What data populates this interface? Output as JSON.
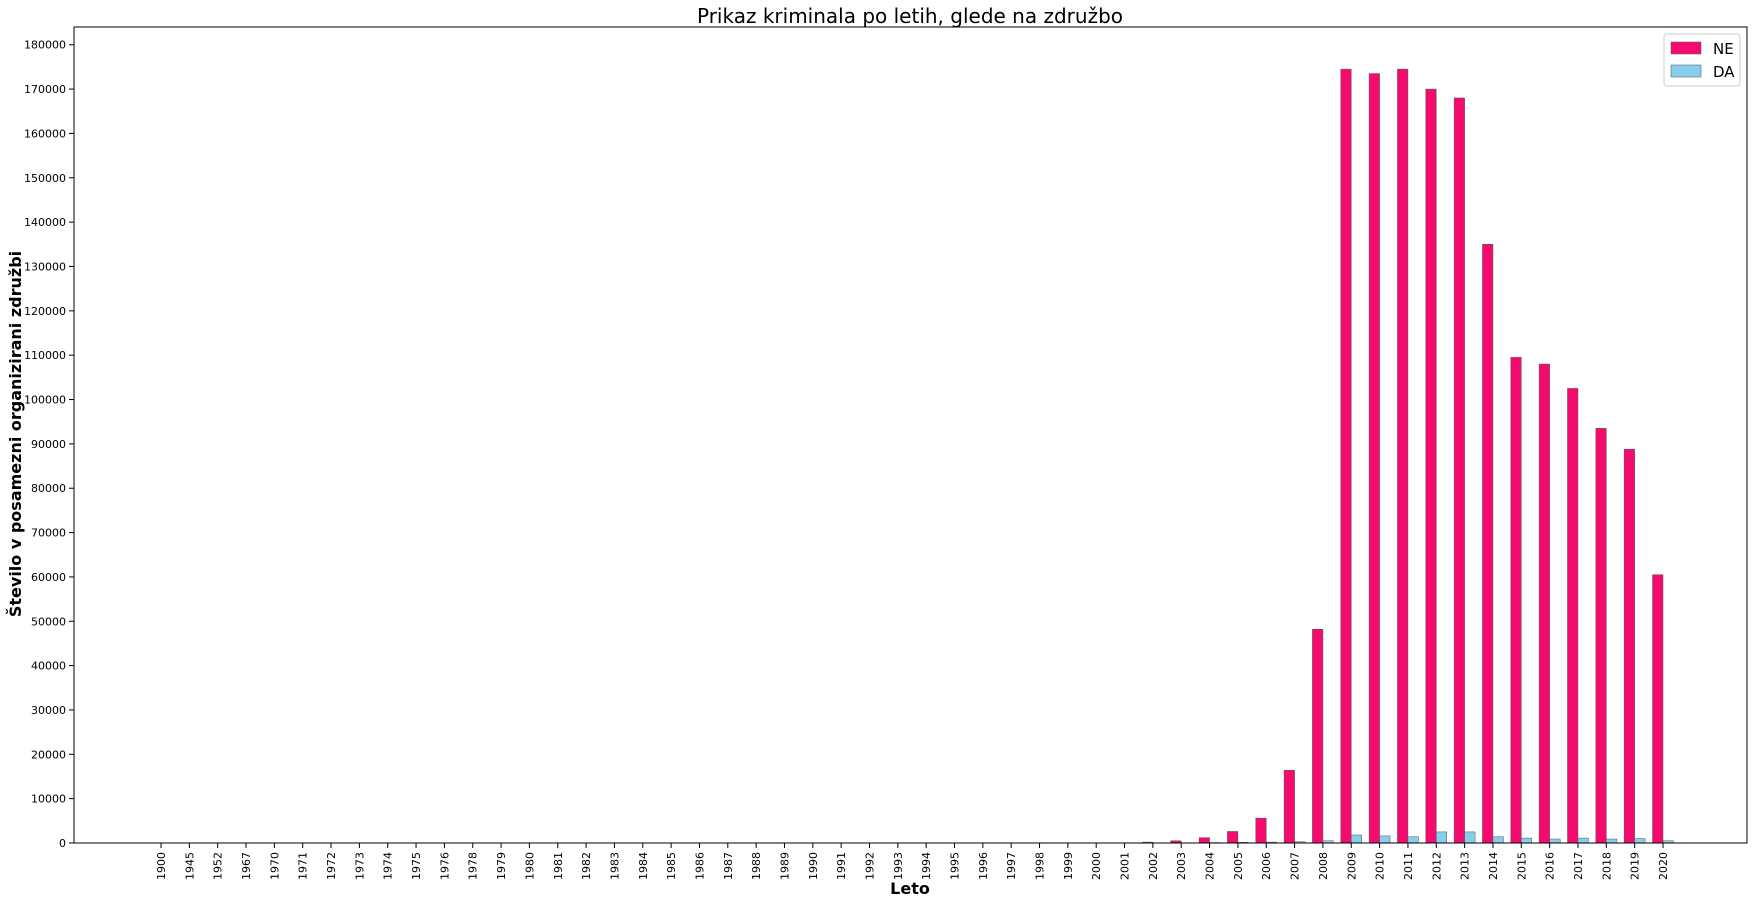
{
  "chart_data": {
    "type": "bar",
    "title": "Prikaz kriminala po letih, glede na združbo",
    "xlabel": "Leto",
    "ylabel": "Število v posamezni organizirani združbi",
    "ylim": [
      0,
      184000
    ],
    "yticks": [
      0,
      10000,
      20000,
      30000,
      40000,
      50000,
      60000,
      70000,
      80000,
      90000,
      100000,
      110000,
      120000,
      130000,
      140000,
      150000,
      160000,
      170000,
      180000
    ],
    "grid": false,
    "legend_position": "top-right",
    "categories": [
      "1900",
      "1945",
      "1952",
      "1967",
      "1970",
      "1971",
      "1972",
      "1973",
      "1974",
      "1975",
      "1976",
      "1978",
      "1979",
      "1980",
      "1981",
      "1982",
      "1983",
      "1984",
      "1985",
      "1986",
      "1987",
      "1988",
      "1989",
      "1990",
      "1991",
      "1992",
      "1993",
      "1994",
      "1995",
      "1996",
      "1997",
      "1998",
      "1999",
      "2000",
      "2001",
      "2002",
      "2003",
      "2004",
      "2005",
      "2006",
      "2007",
      "2008",
      "2009",
      "2010",
      "2011",
      "2012",
      "2013",
      "2014",
      "2015",
      "2016",
      "2017",
      "2018",
      "2019",
      "2020"
    ],
    "series": [
      {
        "name": "NE",
        "color": "#f50a6e",
        "values": [
          1,
          1,
          1,
          1,
          1,
          1,
          1,
          1,
          1,
          1,
          1,
          1,
          1,
          1,
          1,
          1,
          1,
          1,
          1,
          1,
          1,
          1,
          1,
          1,
          1,
          1,
          1,
          1,
          1,
          1,
          1,
          1,
          1,
          1,
          1,
          200,
          500,
          1200,
          2600,
          5600,
          16400,
          48200,
          174500,
          173500,
          174500,
          170000,
          168000,
          135000,
          109500,
          108000,
          102500,
          93500,
          88800,
          60500
        ]
      },
      {
        "name": "DA",
        "color": "#87ceeb",
        "values": [
          0,
          0,
          0,
          0,
          0,
          0,
          0,
          0,
          0,
          0,
          0,
          0,
          0,
          0,
          0,
          0,
          0,
          0,
          0,
          0,
          0,
          0,
          0,
          0,
          0,
          0,
          0,
          0,
          0,
          0,
          0,
          0,
          0,
          0,
          0,
          20,
          50,
          100,
          150,
          200,
          300,
          500,
          1800,
          1600,
          1400,
          2500,
          2500,
          1400,
          1100,
          900,
          1100,
          900,
          1000,
          500
        ]
      }
    ]
  }
}
